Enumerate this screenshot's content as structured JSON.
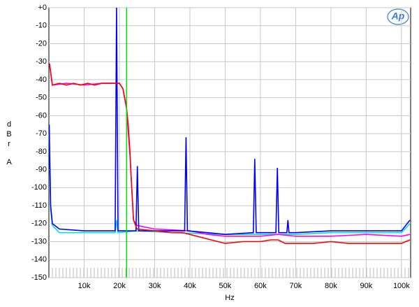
{
  "chart_data": {
    "type": "line",
    "x_label": "Hz",
    "y_label": [
      "d",
      "B",
      "r",
      "A"
    ],
    "logo": "Ap",
    "xlim": [
      0,
      102600
    ],
    "ylim": [
      -150,
      0
    ],
    "xticks": [
      {
        "value": 10000,
        "label": "10k"
      },
      {
        "value": 20000,
        "label": "20k"
      },
      {
        "value": 30000,
        "label": "30k"
      },
      {
        "value": 40000,
        "label": "40k"
      },
      {
        "value": 50000,
        "label": "50k"
      },
      {
        "value": 60000,
        "label": "60k"
      },
      {
        "value": 70000,
        "label": "70k"
      },
      {
        "value": 80000,
        "label": "80k"
      },
      {
        "value": 90000,
        "label": "90k"
      },
      {
        "value": 100000,
        "label": "100k"
      }
    ],
    "yticks": [
      {
        "value": 0,
        "label": "+0"
      },
      -10,
      -20,
      -30,
      -40,
      -50,
      -60,
      -70,
      -80,
      -90,
      -100,
      -110,
      -120,
      -130,
      -140,
      -150
    ],
    "grid": true,
    "marker_x": 22050,
    "marker_color": "#00e000",
    "series": [
      {
        "color": "#00e0e0",
        "x": [
          100,
          500,
          1000,
          3000,
          10000,
          18800,
          19200,
          19600,
          25000,
          35000,
          50000,
          60000,
          70000,
          80000,
          90000,
          100000,
          102400
        ],
        "values": [
          -70,
          -112,
          -121,
          -125,
          -125,
          -125,
          -118,
          -125,
          -124,
          -125,
          -126,
          -126,
          -126,
          -125,
          -125,
          -125,
          -120
        ]
      },
      {
        "color": "#ff00ff",
        "x": [
          200,
          1000,
          5000,
          10000,
          15000,
          20000,
          21000,
          22000,
          23000,
          24000,
          25000,
          30000,
          40000,
          45000,
          50000,
          60000,
          65000,
          70000,
          80000,
          90000,
          100000,
          102400
        ],
        "values": [
          -32,
          -43,
          -42,
          -43,
          -42,
          -42,
          -45,
          -56,
          -82,
          -118,
          -121,
          -123,
          -124,
          -126,
          -127,
          -127,
          -126,
          -127,
          -127,
          -126,
          -127,
          -126
        ]
      },
      {
        "color": "#0000ff",
        "x": [
          100,
          500,
          1000,
          3000,
          10000,
          18800,
          19200,
          19600,
          24700,
          25100,
          25500,
          30000,
          38500,
          38900,
          39300,
          45000,
          50000,
          58000,
          58400,
          58800,
          64400,
          64800,
          65200,
          67500,
          67800,
          68100,
          70000,
          80000,
          90000,
          100000,
          102400
        ],
        "values": [
          -65,
          -110,
          -120,
          -123,
          -124,
          -124,
          0,
          -124,
          -124,
          -88,
          -124,
          -124,
          -124,
          -72,
          -124,
          -125,
          -126,
          -125,
          -84,
          -125,
          -125,
          -89,
          -125,
          -125,
          -118,
          -125,
          -125,
          -124,
          -124,
          -124,
          -118
        ]
      },
      {
        "color": "#ff0000",
        "x": [
          200,
          1000,
          3000,
          5000,
          7000,
          9000,
          11000,
          13000,
          15000,
          17000,
          19000,
          20000,
          21000,
          22000,
          22500,
          23000,
          23500,
          24000,
          25000,
          30000,
          35000,
          38000,
          42000,
          46000,
          50000,
          55000,
          60000,
          63000,
          65000,
          67000,
          70000,
          75000,
          80000,
          85000,
          90000,
          95000,
          100000,
          102400
        ],
        "values": [
          -31,
          -43,
          -42,
          -43,
          -42,
          -43,
          -42,
          -43,
          -42,
          -42,
          -42,
          -42,
          -45,
          -55,
          -65,
          -80,
          -100,
          -118,
          -123,
          -124,
          -125,
          -125,
          -127,
          -129,
          -131,
          -130,
          -130,
          -129,
          -129,
          -131,
          -131,
          -131,
          -130,
          -131,
          -131,
          -131,
          -131,
          -129
        ]
      }
    ]
  }
}
